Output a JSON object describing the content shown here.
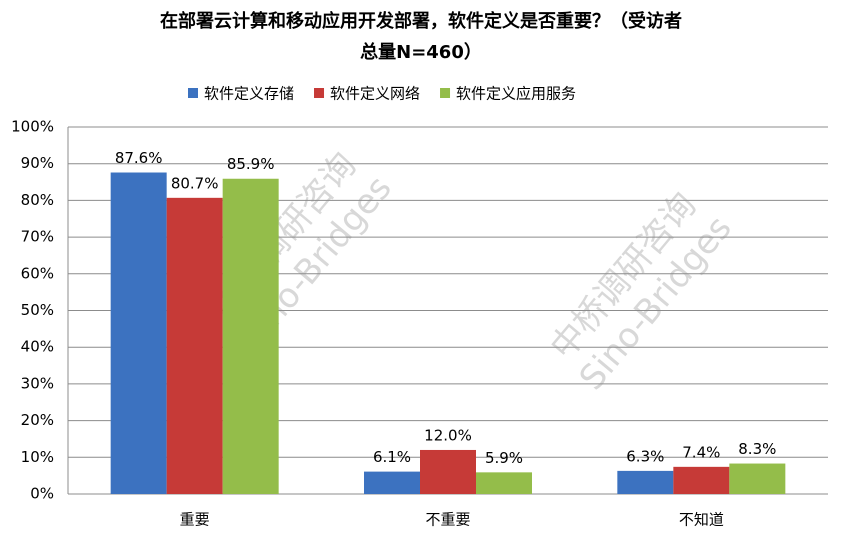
{
  "chart_data": {
    "type": "bar",
    "title": [
      "在部署云计算和移动应用开发部署，软件定义是否重要？（受访者",
      "总量N=460）"
    ],
    "categories": [
      "重要",
      "不重要",
      "不知道"
    ],
    "series": [
      {
        "name": "软件定义存储",
        "color": "#3c72c0",
        "values": [
          87.6,
          6.1,
          6.3
        ],
        "value_labels": [
          "87.6%",
          "6.1%",
          "6.3%"
        ]
      },
      {
        "name": "软件定义网络",
        "color": "#c63a37",
        "values": [
          80.7,
          12.0,
          7.4
        ],
        "value_labels": [
          "80.7%",
          "12.0%",
          "7.4%"
        ]
      },
      {
        "name": "软件定义应用服务",
        "color": "#94bd4a",
        "values": [
          85.9,
          5.9,
          8.3
        ],
        "value_labels": [
          "85.9%",
          "5.9%",
          "8.3%"
        ]
      }
    ],
    "ylim": [
      0,
      100
    ],
    "yticks": [
      {
        "value": 0,
        "label": "0%"
      },
      {
        "value": 10,
        "label": "10%"
      },
      {
        "value": 20,
        "label": "20%"
      },
      {
        "value": 30,
        "label": "30%"
      },
      {
        "value": 40,
        "label": "40%"
      },
      {
        "value": 50,
        "label": "50%"
      },
      {
        "value": 60,
        "label": "60%"
      },
      {
        "value": 70,
        "label": "70%"
      },
      {
        "value": 80,
        "label": "80%"
      },
      {
        "value": 90,
        "label": "90%"
      },
      {
        "value": 100,
        "label": "100%"
      }
    ],
    "grid": true,
    "legend": "top",
    "watermark": [
      "中桥调研咨询",
      "Sino-Bridges"
    ]
  }
}
